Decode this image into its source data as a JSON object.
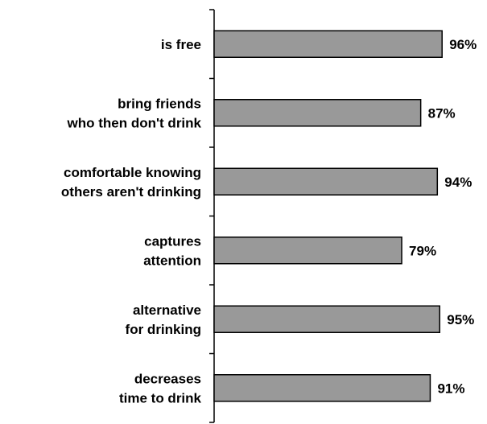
{
  "chart_data": {
    "type": "bar",
    "orientation": "horizontal",
    "categories": [
      [
        "is free"
      ],
      [
        "bring friends",
        "who then don't drink"
      ],
      [
        "comfortable knowing",
        "others aren't drinking"
      ],
      [
        "captures",
        "attention"
      ],
      [
        "alternative",
        "for drinking"
      ],
      [
        "decreases",
        "time to drink"
      ]
    ],
    "values": [
      96,
      87,
      94,
      79,
      95,
      91
    ],
    "value_labels": [
      "96%",
      "87%",
      "94%",
      "79%",
      "95%",
      "91%"
    ],
    "value_unit": "%",
    "xlim": [
      0,
      100
    ],
    "title": "",
    "xlabel": "",
    "ylabel": "",
    "grid": false,
    "legend": "none",
    "bar_color": "#999999",
    "bar_border_color": "#000000"
  }
}
